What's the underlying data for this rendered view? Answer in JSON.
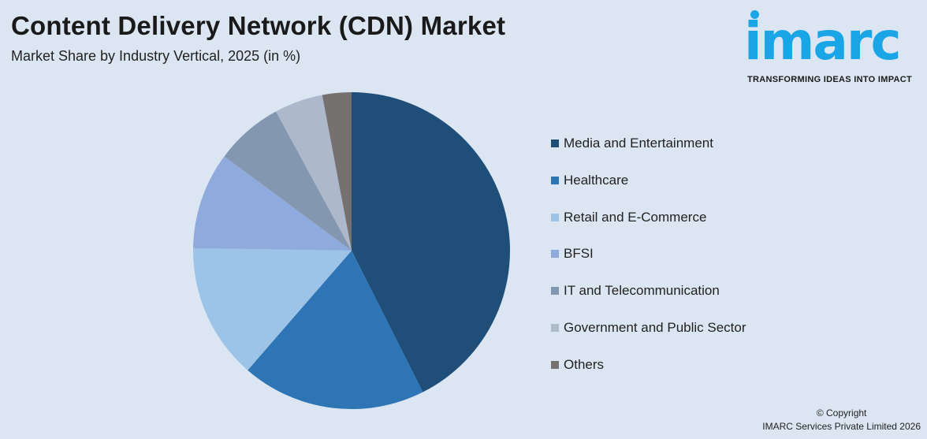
{
  "title": "Content Delivery Network (CDN) Market",
  "subtitle": "Market Share by Industry Vertical, 2025 (in %)",
  "logo": {
    "word": "imarc",
    "tagline": "TRANSFORMING IDEAS INTO IMPACT",
    "color": "#1aa6e6"
  },
  "copyright": {
    "line1": "© Copyright",
    "line2": "IMARC Services Private Limited 2026"
  },
  "chart_data": {
    "type": "pie",
    "title": "Content Delivery Network (CDN) Market",
    "subtitle": "Market Share by Industry Vertical, 2025 (in %)",
    "legend_position": "right",
    "categories": [
      "Media and Entertainment",
      "Healthcare",
      "Retail and E-Commerce",
      "BFSI",
      "IT and Telecommunication",
      "Government and Public Sector",
      "Others"
    ],
    "values": [
      43,
      19,
      14,
      10,
      7,
      5,
      3
    ],
    "colors": [
      "#1f4e79",
      "#2e75b6",
      "#9dc3e6",
      "#8faadc",
      "#8497b0",
      "#adb9ca",
      "#767171"
    ]
  }
}
